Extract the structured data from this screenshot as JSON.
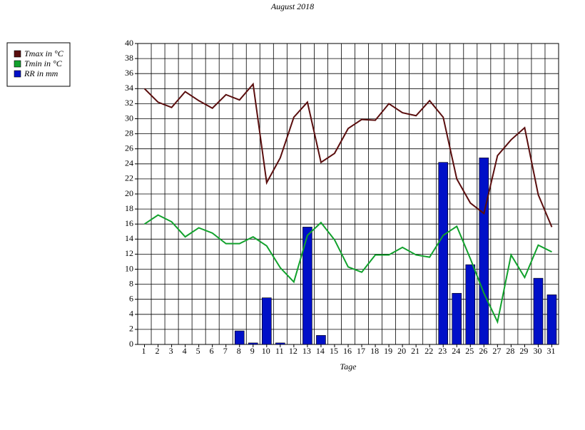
{
  "chart_data": {
    "type": "bar-line",
    "title": "August 2018",
    "xlabel": "Tage",
    "categories": [
      "1",
      "2",
      "3",
      "4",
      "5",
      "6",
      "7",
      "8",
      "9",
      "10",
      "11",
      "12",
      "13",
      "14",
      "15",
      "16",
      "17",
      "18",
      "19",
      "20",
      "21",
      "22",
      "23",
      "24",
      "25",
      "26",
      "27",
      "28",
      "29",
      "30",
      "31"
    ],
    "series": [
      {
        "name": "Tmax in °C",
        "type": "line",
        "color": "#5a0e0e",
        "values": [
          34,
          32.2,
          31.5,
          33.6,
          32.4,
          31.4,
          33.2,
          32.5,
          34.6,
          21.5,
          24.8,
          30.2,
          32.2,
          24.2,
          25.4,
          28.7,
          29.9,
          29.8,
          32,
          30.8,
          30.4,
          32.4,
          30.2,
          22,
          18.8,
          17.4,
          25.1,
          27.2,
          28.8,
          19.9,
          15.6
        ]
      },
      {
        "name": "Tmin in °C",
        "type": "line",
        "color": "#11a12c",
        "values": [
          16,
          17.2,
          16.3,
          14.3,
          15.5,
          14.8,
          13.4,
          13.4,
          14.3,
          13.1,
          10.2,
          8.3,
          14.5,
          16.2,
          13.9,
          10.3,
          9.6,
          11.9,
          11.9,
          12.9,
          11.9,
          11.6,
          14.5,
          15.7,
          11.4,
          6.8,
          3,
          11.9,
          8.9,
          13.2,
          12.3
        ]
      },
      {
        "name": "RR in mm",
        "type": "bar",
        "color": "#0010c8",
        "values": [
          0,
          0,
          0,
          0,
          0,
          0,
          0,
          1.8,
          0.2,
          6.2,
          0.2,
          0,
          15.6,
          1.2,
          0,
          0,
          0,
          0,
          0,
          0,
          0,
          0,
          24.2,
          6.8,
          10.6,
          24.8,
          0,
          0,
          0,
          8.8,
          6.6
        ]
      }
    ],
    "ylim": [
      0,
      40
    ],
    "yticks": [
      0,
      2,
      4,
      6,
      8,
      10,
      12,
      14,
      16,
      18,
      20,
      22,
      24,
      26,
      28,
      30,
      32,
      34,
      36,
      38,
      40
    ],
    "grid": true,
    "legend": "left"
  }
}
